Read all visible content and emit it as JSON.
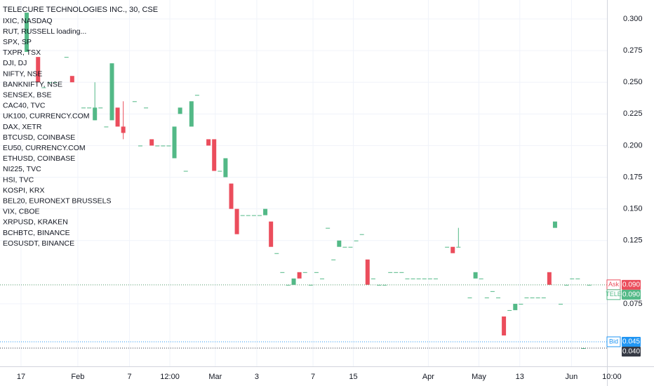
{
  "chart_data": {
    "type": "candlestick",
    "title": "TELECURE TECHNOLOGIES INC., 30, CSE",
    "symbols": [
      "IXIC, NASDAQ",
      "RUT, RUSSELL loading...",
      "SPX, SP",
      "TXPR, TSX",
      "DJI, DJ",
      "NIFTY, NSE",
      "BANKNIFTY, NSE",
      "SENSEX, BSE",
      "CAC40, TVC",
      "UK100, CURRENCY.COM",
      "DAX, XETR",
      "BTCUSD, COINBASE",
      "EU50, CURRENCY.COM",
      "ETHUSD, COINBASE",
      "NI225, TVC",
      "HSI, TVC",
      "KOSPI, KRX",
      "BEL20, EURONEXT BRUSSELS",
      "VIX, CBOE",
      "XRPUSD, KRAKEN",
      "BCHBTC, BINANCE",
      "EOSUSDT, BINANCE"
    ],
    "up_color": "#53b987",
    "down_color": "#eb4d5c",
    "xlim": [
      -4.7,
      104
    ],
    "xticks": [
      {
        "value": -1,
        "label": "17"
      },
      {
        "value": 9,
        "label": "Feb"
      },
      {
        "value": 18.1,
        "label": "7"
      },
      {
        "value": 25.2,
        "label": "12:00"
      },
      {
        "value": 33.2,
        "label": "Mar"
      },
      {
        "value": 40.5,
        "label": "3"
      },
      {
        "value": 50.4,
        "label": "7"
      },
      {
        "value": 57.5,
        "label": "15"
      },
      {
        "value": 70.7,
        "label": "Apr"
      },
      {
        "value": 79.6,
        "label": "May"
      },
      {
        "value": 86.8,
        "label": "13"
      },
      {
        "value": 95.9,
        "label": "Jun"
      },
      {
        "value": 103,
        "label": "10:00"
      }
    ],
    "ylim": [
      0.0256,
      0.315
    ],
    "yticks": [
      {
        "value": 0.3,
        "label": "0.300"
      },
      {
        "value": 0.275,
        "label": "0.275"
      },
      {
        "value": 0.25,
        "label": "0.250"
      },
      {
        "value": 0.225,
        "label": "0.225"
      },
      {
        "value": 0.2,
        "label": "0.200"
      },
      {
        "value": 0.175,
        "label": "0.175"
      },
      {
        "value": 0.15,
        "label": "0.150"
      },
      {
        "value": 0.125,
        "label": "0.125"
      },
      {
        "value": 0.075,
        "label": "0.075"
      }
    ],
    "grid": true,
    "price_lines": [
      {
        "tag": "Ask",
        "value": 0.09,
        "value_label": "0.090",
        "color": "#eb4d5c"
      },
      {
        "tag": "TELE",
        "value": 0.09,
        "value_label": "0.090",
        "color": "#53b987"
      },
      {
        "tag": "Bid",
        "value": 0.045,
        "value_label": "0.045",
        "color": "#2196f3"
      },
      {
        "value": 0.04,
        "value_label": "0.040",
        "color": "#363a45"
      }
    ],
    "candles": [
      {
        "x": 0,
        "open": 0.274,
        "high": 0.305,
        "low": 0.274,
        "close": 0.305
      },
      {
        "x": 2,
        "open": 0.27,
        "high": 0.27,
        "low": 0.25,
        "close": 0.25
      },
      {
        "x": 3,
        "open": 0.246,
        "high": 0.246,
        "low": 0.246,
        "close": 0.246
      },
      {
        "x": 4,
        "open": 0.25,
        "high": 0.25,
        "low": 0.25,
        "close": 0.25
      },
      {
        "x": 5,
        "open": 0.25,
        "high": 0.25,
        "low": 0.25,
        "close": 0.25
      },
      {
        "x": 7,
        "open": 0.27,
        "high": 0.27,
        "low": 0.27,
        "close": 0.27
      },
      {
        "x": 8,
        "open": 0.255,
        "high": 0.255,
        "low": 0.25,
        "close": 0.25
      },
      {
        "x": 10,
        "open": 0.23,
        "high": 0.23,
        "low": 0.23,
        "close": 0.23
      },
      {
        "x": 11,
        "open": 0.23,
        "high": 0.23,
        "low": 0.23,
        "close": 0.23
      },
      {
        "x": 12,
        "open": 0.22,
        "high": 0.25,
        "low": 0.22,
        "close": 0.23
      },
      {
        "x": 13,
        "open": 0.23,
        "high": 0.23,
        "low": 0.23,
        "close": 0.23
      },
      {
        "x": 14,
        "open": 0.215,
        "high": 0.215,
        "low": 0.215,
        "close": 0.215
      },
      {
        "x": 15,
        "open": 0.22,
        "high": 0.265,
        "low": 0.22,
        "close": 0.265
      },
      {
        "x": 16,
        "open": 0.23,
        "high": 0.23,
        "low": 0.215,
        "close": 0.215
      },
      {
        "x": 17,
        "open": 0.215,
        "high": 0.235,
        "low": 0.205,
        "close": 0.21
      },
      {
        "x": 19,
        "open": 0.235,
        "high": 0.235,
        "low": 0.235,
        "close": 0.235
      },
      {
        "x": 20,
        "open": 0.2,
        "high": 0.2,
        "low": 0.2,
        "close": 0.2
      },
      {
        "x": 21,
        "open": 0.23,
        "high": 0.23,
        "low": 0.23,
        "close": 0.23
      },
      {
        "x": 22,
        "open": 0.205,
        "high": 0.205,
        "low": 0.2,
        "close": 0.2
      },
      {
        "x": 23,
        "open": 0.2,
        "high": 0.2,
        "low": 0.2,
        "close": 0.2
      },
      {
        "x": 24,
        "open": 0.2,
        "high": 0.2,
        "low": 0.2,
        "close": 0.2
      },
      {
        "x": 25,
        "open": 0.2,
        "high": 0.2,
        "low": 0.2,
        "close": 0.2
      },
      {
        "x": 26,
        "open": 0.19,
        "high": 0.215,
        "low": 0.19,
        "close": 0.215
      },
      {
        "x": 27,
        "open": 0.225,
        "high": 0.23,
        "low": 0.225,
        "close": 0.23
      },
      {
        "x": 28,
        "open": 0.18,
        "high": 0.18,
        "low": 0.18,
        "close": 0.18
      },
      {
        "x": 29,
        "open": 0.215,
        "high": 0.235,
        "low": 0.215,
        "close": 0.235
      },
      {
        "x": 30,
        "open": 0.24,
        "high": 0.24,
        "low": 0.24,
        "close": 0.24
      },
      {
        "x": 32,
        "open": 0.205,
        "high": 0.205,
        "low": 0.2,
        "close": 0.2
      },
      {
        "x": 33,
        "open": 0.205,
        "high": 0.205,
        "low": 0.18,
        "close": 0.18
      },
      {
        "x": 34,
        "open": 0.18,
        "high": 0.18,
        "low": 0.18,
        "close": 0.18
      },
      {
        "x": 35,
        "open": 0.175,
        "high": 0.19,
        "low": 0.175,
        "close": 0.19
      },
      {
        "x": 36,
        "open": 0.17,
        "high": 0.17,
        "low": 0.15,
        "close": 0.15
      },
      {
        "x": 37,
        "open": 0.15,
        "high": 0.15,
        "low": 0.13,
        "close": 0.13
      },
      {
        "x": 38,
        "open": 0.145,
        "high": 0.145,
        "low": 0.145,
        "close": 0.145
      },
      {
        "x": 39,
        "open": 0.145,
        "high": 0.145,
        "low": 0.145,
        "close": 0.145
      },
      {
        "x": 40,
        "open": 0.145,
        "high": 0.145,
        "low": 0.145,
        "close": 0.145
      },
      {
        "x": 41,
        "open": 0.145,
        "high": 0.145,
        "low": 0.145,
        "close": 0.145
      },
      {
        "x": 42,
        "open": 0.145,
        "high": 0.15,
        "low": 0.145,
        "close": 0.15
      },
      {
        "x": 43,
        "open": 0.14,
        "high": 0.14,
        "low": 0.12,
        "close": 0.12
      },
      {
        "x": 44,
        "open": 0.115,
        "high": 0.115,
        "low": 0.115,
        "close": 0.115
      },
      {
        "x": 45,
        "open": 0.1,
        "high": 0.1,
        "low": 0.1,
        "close": 0.1
      },
      {
        "x": 46,
        "open": 0.09,
        "high": 0.09,
        "low": 0.09,
        "close": 0.09
      },
      {
        "x": 47,
        "open": 0.09,
        "high": 0.095,
        "low": 0.09,
        "close": 0.095
      },
      {
        "x": 48,
        "open": 0.1,
        "high": 0.1,
        "low": 0.095,
        "close": 0.095
      },
      {
        "x": 49,
        "open": 0.1,
        "high": 0.1,
        "low": 0.1,
        "close": 0.1
      },
      {
        "x": 50,
        "open": 0.09,
        "high": 0.09,
        "low": 0.09,
        "close": 0.09
      },
      {
        "x": 51,
        "open": 0.1,
        "high": 0.1,
        "low": 0.1,
        "close": 0.1
      },
      {
        "x": 52,
        "open": 0.095,
        "high": 0.095,
        "low": 0.095,
        "close": 0.095
      },
      {
        "x": 53,
        "open": 0.135,
        "high": 0.135,
        "low": 0.135,
        "close": 0.135
      },
      {
        "x": 54,
        "open": 0.11,
        "high": 0.11,
        "low": 0.11,
        "close": 0.11
      },
      {
        "x": 55,
        "open": 0.12,
        "high": 0.125,
        "low": 0.12,
        "close": 0.125
      },
      {
        "x": 56,
        "open": 0.12,
        "high": 0.12,
        "low": 0.12,
        "close": 0.12
      },
      {
        "x": 57,
        "open": 0.12,
        "high": 0.12,
        "low": 0.12,
        "close": 0.12
      },
      {
        "x": 58,
        "open": 0.125,
        "high": 0.125,
        "low": 0.125,
        "close": 0.125
      },
      {
        "x": 59,
        "open": 0.13,
        "high": 0.13,
        "low": 0.13,
        "close": 0.13
      },
      {
        "x": 60,
        "open": 0.11,
        "high": 0.11,
        "low": 0.09,
        "close": 0.09
      },
      {
        "x": 61,
        "open": 0.095,
        "high": 0.095,
        "low": 0.095,
        "close": 0.095
      },
      {
        "x": 62,
        "open": 0.09,
        "high": 0.09,
        "low": 0.09,
        "close": 0.09
      },
      {
        "x": 63,
        "open": 0.09,
        "high": 0.09,
        "low": 0.09,
        "close": 0.09
      },
      {
        "x": 64,
        "open": 0.1,
        "high": 0.1,
        "low": 0.1,
        "close": 0.1
      },
      {
        "x": 65,
        "open": 0.1,
        "high": 0.1,
        "low": 0.1,
        "close": 0.1
      },
      {
        "x": 66,
        "open": 0.1,
        "high": 0.1,
        "low": 0.1,
        "close": 0.1
      },
      {
        "x": 67,
        "open": 0.095,
        "high": 0.095,
        "low": 0.095,
        "close": 0.095
      },
      {
        "x": 68,
        "open": 0.095,
        "high": 0.095,
        "low": 0.095,
        "close": 0.095
      },
      {
        "x": 69,
        "open": 0.095,
        "high": 0.095,
        "low": 0.095,
        "close": 0.095
      },
      {
        "x": 70,
        "open": 0.095,
        "high": 0.095,
        "low": 0.095,
        "close": 0.095
      },
      {
        "x": 71,
        "open": 0.095,
        "high": 0.095,
        "low": 0.095,
        "close": 0.095
      },
      {
        "x": 72,
        "open": 0.095,
        "high": 0.095,
        "low": 0.095,
        "close": 0.095
      },
      {
        "x": 74,
        "open": 0.12,
        "high": 0.12,
        "low": 0.12,
        "close": 0.12
      },
      {
        "x": 75,
        "open": 0.12,
        "high": 0.12,
        "low": 0.115,
        "close": 0.115
      },
      {
        "x": 76,
        "open": 0.12,
        "high": 0.135,
        "low": 0.12,
        "close": 0.12
      },
      {
        "x": 78,
        "open": 0.08,
        "high": 0.08,
        "low": 0.08,
        "close": 0.08
      },
      {
        "x": 79,
        "open": 0.095,
        "high": 0.1,
        "low": 0.095,
        "close": 0.1
      },
      {
        "x": 80,
        "open": 0.095,
        "high": 0.095,
        "low": 0.095,
        "close": 0.095
      },
      {
        "x": 81,
        "open": 0.08,
        "high": 0.08,
        "low": 0.08,
        "close": 0.08
      },
      {
        "x": 82,
        "open": 0.085,
        "high": 0.085,
        "low": 0.085,
        "close": 0.085
      },
      {
        "x": 83,
        "open": 0.08,
        "high": 0.08,
        "low": 0.08,
        "close": 0.08
      },
      {
        "x": 84,
        "open": 0.065,
        "high": 0.065,
        "low": 0.05,
        "close": 0.05
      },
      {
        "x": 85,
        "open": 0.07,
        "high": 0.07,
        "low": 0.07,
        "close": 0.07
      },
      {
        "x": 86,
        "open": 0.07,
        "high": 0.075,
        "low": 0.07,
        "close": 0.075
      },
      {
        "x": 87,
        "open": 0.075,
        "high": 0.075,
        "low": 0.075,
        "close": 0.075
      },
      {
        "x": 88,
        "open": 0.08,
        "high": 0.08,
        "low": 0.08,
        "close": 0.08
      },
      {
        "x": 89,
        "open": 0.08,
        "high": 0.08,
        "low": 0.08,
        "close": 0.08
      },
      {
        "x": 90,
        "open": 0.08,
        "high": 0.08,
        "low": 0.08,
        "close": 0.08
      },
      {
        "x": 91,
        "open": 0.08,
        "high": 0.08,
        "low": 0.08,
        "close": 0.08
      },
      {
        "x": 92,
        "open": 0.1,
        "high": 0.1,
        "low": 0.09,
        "close": 0.09
      },
      {
        "x": 93,
        "open": 0.135,
        "high": 0.14,
        "low": 0.135,
        "close": 0.14
      },
      {
        "x": 94,
        "open": 0.075,
        "high": 0.075,
        "low": 0.075,
        "close": 0.075
      },
      {
        "x": 95,
        "open": 0.09,
        "high": 0.09,
        "low": 0.09,
        "close": 0.09
      },
      {
        "x": 96,
        "open": 0.095,
        "high": 0.095,
        "low": 0.095,
        "close": 0.095
      },
      {
        "x": 97,
        "open": 0.095,
        "high": 0.095,
        "low": 0.095,
        "close": 0.095
      },
      {
        "x": 98,
        "open": 0.04,
        "high": 0.04,
        "low": 0.04,
        "close": 0.04
      },
      {
        "x": 99,
        "open": 0.09,
        "high": 0.09,
        "low": 0.09,
        "close": 0.09
      }
    ]
  }
}
